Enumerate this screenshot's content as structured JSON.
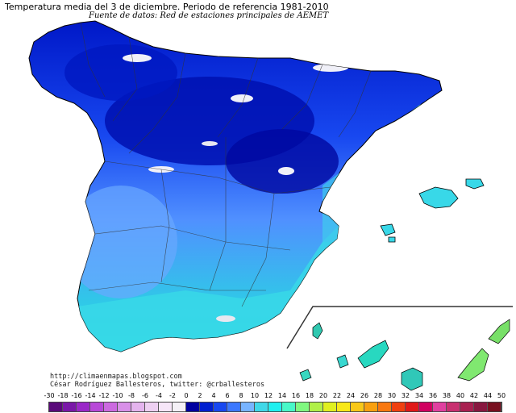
{
  "map": {
    "title": "Temperatura media del 3 de diciembre. Periodo de referencia 1981-2010",
    "subtitle": "Fuente de datos: Red de estaciones principales de AEMET",
    "credits": {
      "url": "http://climaenmapas.blogspot.com",
      "author": "César Rodríguez Ballesteros, twitter: @crballesteros"
    },
    "region": "Spain (Península, Baleares, Canarias)"
  },
  "legend": {
    "labels": [
      "-30",
      "-18",
      "-16",
      "-14",
      "-12",
      "-10",
      "-8",
      "-6",
      "-4",
      "-2",
      "0",
      "2",
      "4",
      "6",
      "8",
      "10",
      "12",
      "14",
      "16",
      "18",
      "20",
      "22",
      "24",
      "26",
      "28",
      "30",
      "32",
      "34",
      "36",
      "38",
      "40",
      "42",
      "44",
      "50"
    ],
    "colors": [
      "#5a0a7a",
      "#7a18a8",
      "#9a28c8",
      "#b848d8",
      "#cc6ae0",
      "#d890e8",
      "#e4b4ee",
      "#eed0f2",
      "#f6e6f8",
      "#f4f0f6",
      "#0000a0",
      "#0020d0",
      "#1848f0",
      "#3c78ff",
      "#78b4ff",
      "#40d8e8",
      "#20f0f0",
      "#48f8c8",
      "#80f880",
      "#b0f048",
      "#e0f020",
      "#f8e818",
      "#f8c818",
      "#f8a010",
      "#f87810",
      "#f04010",
      "#e01818",
      "#d00060",
      "#e040a0",
      "#c83070",
      "#a82050",
      "#881840",
      "#781020"
    ]
  },
  "colors": {
    "border": "#333333",
    "outline": "#000000",
    "background": "#ffffff"
  }
}
